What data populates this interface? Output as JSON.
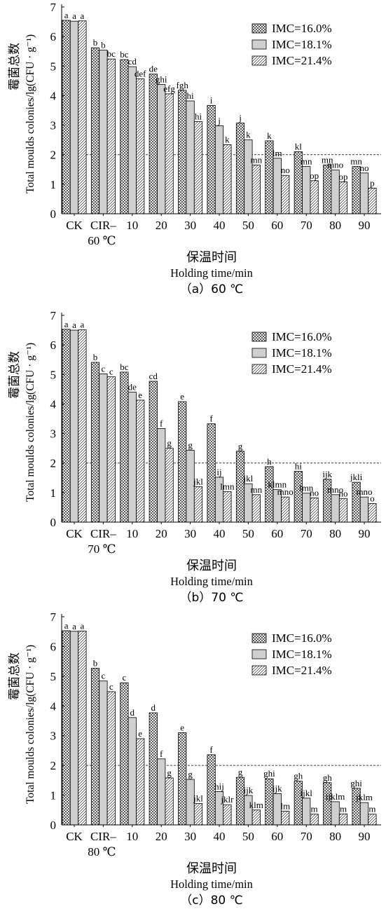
{
  "chart_data": [
    {
      "type": "bar",
      "panel_caption": "（a）60 ℃",
      "xlabel_cn": "保温时间",
      "xlabel_en": "Holding time/min",
      "ylabel_cn": "霉菌总数",
      "ylabel_en": "Total moulds colonies/lg(CFU · g⁻¹)",
      "ylim": [
        0,
        7
      ],
      "yticks": [
        0,
        1,
        2,
        3,
        4,
        5,
        6,
        7
      ],
      "reference_line": 2,
      "legend_position": "top-right",
      "categories": [
        {
          "line1": "CK",
          "line2": ""
        },
        {
          "line1": "CIR–",
          "line2": "60 ℃"
        },
        {
          "line1": "10",
          "line2": ""
        },
        {
          "line1": "20",
          "line2": ""
        },
        {
          "line1": "30",
          "line2": ""
        },
        {
          "line1": "40",
          "line2": ""
        },
        {
          "line1": "50",
          "line2": ""
        },
        {
          "line1": "60",
          "line2": ""
        },
        {
          "line1": "70",
          "line2": ""
        },
        {
          "line1": "80",
          "line2": ""
        },
        {
          "line1": "90",
          "line2": ""
        }
      ],
      "series": [
        {
          "name": "IMC=16.0%",
          "pattern": "crosshatch",
          "values": [
            6.55,
            5.62,
            5.22,
            4.73,
            4.18,
            3.67,
            3.07,
            2.47,
            2.1,
            1.65,
            1.6
          ],
          "labels": [
            "a",
            "b",
            "bc",
            "de",
            "fgh",
            "i",
            "j",
            "k",
            "kl",
            "mn",
            "mn"
          ]
        },
        {
          "name": "IMC=18.1%",
          "pattern": "gray",
          "values": [
            6.52,
            5.54,
            4.98,
            4.38,
            3.82,
            2.98,
            2.5,
            1.88,
            1.6,
            1.48,
            1.38
          ],
          "labels": [
            "a",
            "b",
            "cd",
            "ghi",
            "hi",
            "j",
            "k",
            "lm",
            "mn",
            "mno",
            "no"
          ]
        },
        {
          "name": "IMC=21.4%",
          "pattern": "diagonal",
          "values": [
            6.53,
            5.24,
            4.57,
            4.06,
            3.12,
            2.34,
            1.65,
            1.3,
            1.12,
            1.08,
            0.87
          ],
          "labels": [
            "a",
            "bc",
            "def",
            "efg",
            "hi",
            "k",
            "mn",
            "no",
            "op",
            "op",
            "p"
          ]
        }
      ]
    },
    {
      "type": "bar",
      "panel_caption": "（b）70 ℃",
      "xlabel_cn": "保温时间",
      "xlabel_en": "Holding time/min",
      "ylabel_cn": "霉菌总数",
      "ylabel_en": "Total moulds colonies/lg(CFU · g⁻¹)",
      "ylim": [
        0,
        7
      ],
      "yticks": [
        0,
        1,
        2,
        3,
        4,
        5,
        6,
        7
      ],
      "reference_line": 2,
      "legend_position": "top-right",
      "categories": [
        {
          "line1": "CK",
          "line2": ""
        },
        {
          "line1": "CIR–",
          "line2": "70 ℃"
        },
        {
          "line1": "10",
          "line2": ""
        },
        {
          "line1": "20",
          "line2": ""
        },
        {
          "line1": "30",
          "line2": ""
        },
        {
          "line1": "40",
          "line2": ""
        },
        {
          "line1": "50",
          "line2": ""
        },
        {
          "line1": "60",
          "line2": ""
        },
        {
          "line1": "70",
          "line2": ""
        },
        {
          "line1": "80",
          "line2": ""
        },
        {
          "line1": "90",
          "line2": ""
        }
      ],
      "series": [
        {
          "name": "IMC=16.0%",
          "pattern": "crosshatch",
          "values": [
            6.53,
            5.41,
            5.08,
            4.77,
            4.08,
            3.33,
            2.4,
            1.88,
            1.72,
            1.45,
            1.35
          ],
          "labels": [
            "a",
            "b",
            "bc",
            "cd",
            "e",
            "f",
            "g",
            "h",
            "hi",
            "ijk",
            "jkli"
          ]
        },
        {
          "name": "IMC=18.1%",
          "pattern": "gray",
          "values": [
            6.5,
            5.02,
            4.4,
            3.17,
            2.43,
            1.52,
            1.3,
            1.1,
            0.98,
            0.93,
            0.85
          ],
          "labels": [
            "a",
            "c",
            "de",
            "f",
            "g",
            "ij",
            "jkl",
            "klmn",
            "lmn",
            "mno",
            "mno"
          ]
        },
        {
          "name": "IMC=21.4%",
          "pattern": "diagonal",
          "values": [
            6.51,
            4.92,
            4.13,
            2.5,
            1.2,
            1.03,
            0.93,
            0.85,
            0.82,
            0.8,
            0.63
          ],
          "labels": [
            "a",
            "c",
            "e",
            "g",
            "jkl",
            "lmn",
            "mn",
            "mno",
            "no",
            "no",
            "o"
          ]
        }
      ]
    },
    {
      "type": "bar",
      "panel_caption": "（c）80 ℃",
      "xlabel_cn": "保温时间",
      "xlabel_en": "Holding time/min",
      "ylabel_cn": "霉菌总数",
      "ylabel_en": "Total moulds colonies/lg(CFU · g⁻¹)",
      "ylim": [
        0,
        7
      ],
      "yticks": [
        0,
        1,
        2,
        3,
        4,
        5,
        6,
        7
      ],
      "reference_line": 2,
      "legend_position": "top-right",
      "categories": [
        {
          "line1": "CK",
          "line2": ""
        },
        {
          "line1": "CIR–",
          "line2": "80 ℃"
        },
        {
          "line1": "10",
          "line2": ""
        },
        {
          "line1": "20",
          "line2": ""
        },
        {
          "line1": "30",
          "line2": ""
        },
        {
          "line1": "40",
          "line2": ""
        },
        {
          "line1": "50",
          "line2": ""
        },
        {
          "line1": "60",
          "line2": ""
        },
        {
          "line1": "70",
          "line2": ""
        },
        {
          "line1": "80",
          "line2": ""
        },
        {
          "line1": "90",
          "line2": ""
        }
      ],
      "series": [
        {
          "name": "IMC=16.0%",
          "pattern": "crosshatch",
          "values": [
            6.53,
            5.27,
            4.78,
            3.77,
            3.1,
            2.36,
            1.6,
            1.55,
            1.47,
            1.42,
            1.23
          ],
          "labels": [
            "a",
            "b",
            "c",
            "d",
            "e",
            "f",
            "g",
            "ghi",
            "gh",
            "gh",
            "ghi"
          ]
        },
        {
          "name": "IMC=18.1%",
          "pattern": "gray",
          "values": [
            6.51,
            4.84,
            3.61,
            2.22,
            1.53,
            1.12,
            0.99,
            1.05,
            0.9,
            0.78,
            0.75
          ],
          "labels": [
            "a",
            "c",
            "d",
            "f",
            "g",
            "hij",
            "ijk",
            "ijk",
            "ijkl",
            "ijklm",
            "jklm"
          ]
        },
        {
          "name": "IMC=21.4%",
          "pattern": "diagonal",
          "values": [
            6.52,
            4.48,
            2.9,
            1.58,
            0.72,
            0.68,
            0.5,
            0.46,
            0.36,
            0.37,
            0.36
          ],
          "labels": [
            "a",
            "c",
            "e",
            "g",
            "jkl",
            "jklr",
            "klm",
            "lm",
            "m",
            "m",
            "m"
          ]
        }
      ]
    }
  ]
}
